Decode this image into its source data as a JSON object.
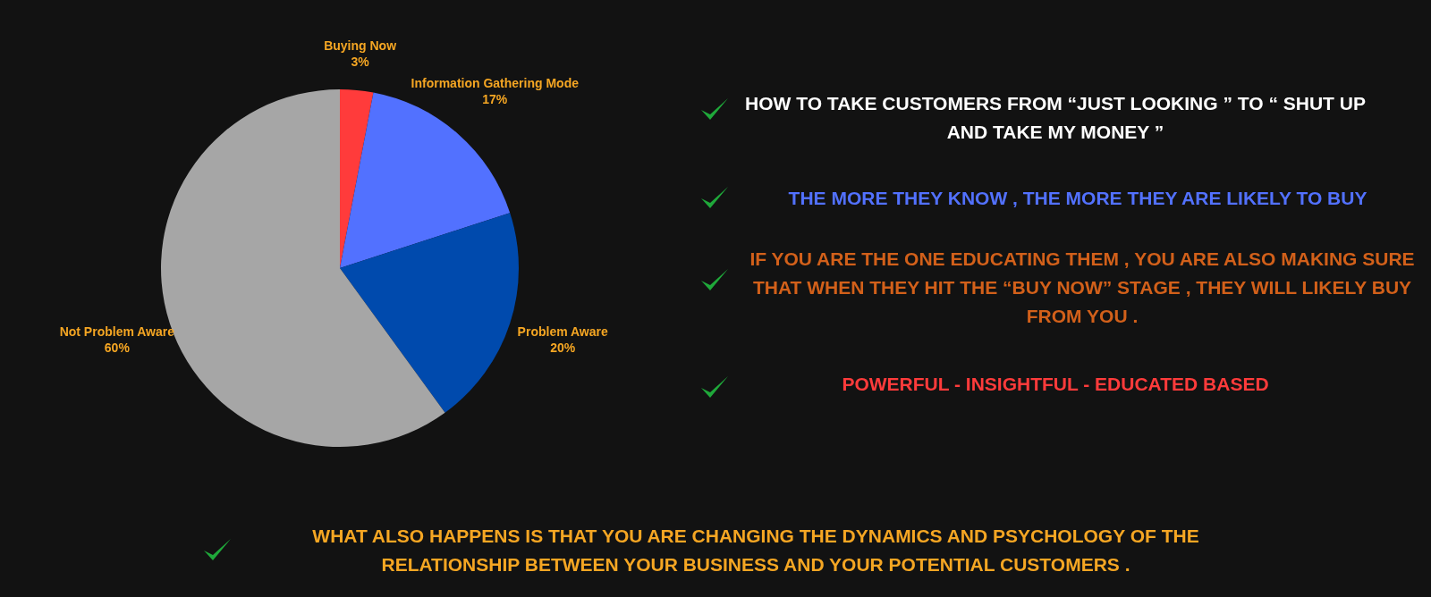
{
  "chart_data": {
    "type": "pie",
    "categories": [
      "Buying Now",
      "Information Gathering Mode",
      "Problem Aware",
      "Not Problem Aware"
    ],
    "values": [
      3,
      17,
      20,
      60
    ],
    "colors": [
      "#ff3b3b",
      "#5271ff",
      "#004aad",
      "#a6a6a6"
    ],
    "value_labels": [
      "3%",
      "17%",
      "20%",
      "60%"
    ],
    "legend": false,
    "annotations": [
      "HOW TO TAKE CUSTOMERS FROM “JUST LOOKING ” TO “ SHUT UP AND TAKE MY MONEY ”",
      "THE MORE THEY KNOW , THE MORE THEY ARE LIKELY TO BUY",
      "IF YOU ARE THE ONE EDUCATING THEM , YOU ARE ALSO MAKING SURE THAT WHEN THEY HIT THE “BUY NOW” STAGE , THEY WILL LIKELY BUY FROM YOU .",
      "POWERFUL - INSIGHTFUL - EDUCATED BASED",
      "WHAT ALSO HAPPENS IS THAT YOU ARE CHANGING THE DYNAMICS AND PSYCHOLOGY OF THE RELATIONSHIP BETWEEN YOUR BUSINESS AND YOUR POTENTIAL CUSTOMERS ."
    ]
  }
}
